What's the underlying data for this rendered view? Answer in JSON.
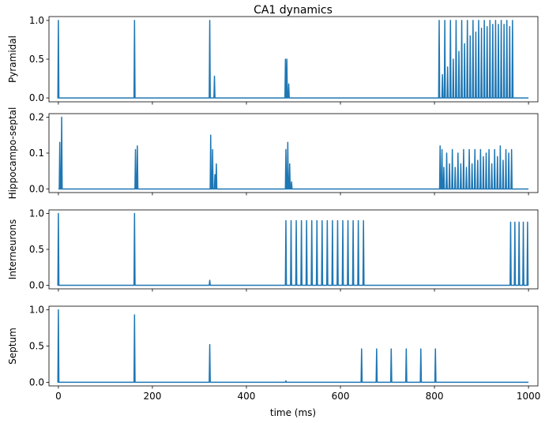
{
  "chart_data": {
    "type": "line",
    "title": "CA1 dynamics",
    "xlabel": "time (ms)",
    "xlim": [
      -20,
      1020
    ],
    "x_ticks": [
      0,
      200,
      400,
      600,
      800,
      1000
    ],
    "x_tick_labels": [
      "0",
      "200",
      "400",
      "600",
      "800",
      "1000"
    ],
    "line_color": "#1f77b4",
    "grid": false,
    "legend": "none",
    "panels": [
      {
        "ylabel": "Pyramidal",
        "ylim": [
          -0.05,
          1.05
        ],
        "y_ticks": [
          0,
          0.5,
          1
        ],
        "y_tick_labels": [
          "0.0",
          "0.5",
          "1.0"
        ],
        "peaks": [
          {
            "t": 0,
            "h": 1.0
          },
          {
            "t": 162,
            "h": 1.0
          },
          {
            "t": 322,
            "h": 1.0
          },
          {
            "t": 332,
            "h": 0.28
          },
          {
            "t": 483,
            "h": 0.5
          },
          {
            "t": 486,
            "h": 0.5
          },
          {
            "t": 490,
            "h": 0.18
          },
          {
            "t": 810,
            "h": 1.0
          },
          {
            "t": 817,
            "h": 0.3
          },
          {
            "t": 822,
            "h": 1.0
          },
          {
            "t": 828,
            "h": 0.4
          },
          {
            "t": 834,
            "h": 1.0
          },
          {
            "t": 840,
            "h": 0.5
          },
          {
            "t": 846,
            "h": 1.0
          },
          {
            "t": 852,
            "h": 0.6
          },
          {
            "t": 858,
            "h": 1.0
          },
          {
            "t": 864,
            "h": 0.7
          },
          {
            "t": 870,
            "h": 1.0
          },
          {
            "t": 876,
            "h": 0.8
          },
          {
            "t": 882,
            "h": 1.0
          },
          {
            "t": 888,
            "h": 0.85
          },
          {
            "t": 894,
            "h": 1.0
          },
          {
            "t": 900,
            "h": 0.9
          },
          {
            "t": 906,
            "h": 1.0
          },
          {
            "t": 912,
            "h": 0.92
          },
          {
            "t": 918,
            "h": 1.0
          },
          {
            "t": 924,
            "h": 0.95
          },
          {
            "t": 930,
            "h": 1.0
          },
          {
            "t": 936,
            "h": 0.95
          },
          {
            "t": 942,
            "h": 1.0
          },
          {
            "t": 948,
            "h": 0.95
          },
          {
            "t": 954,
            "h": 1.0
          },
          {
            "t": 960,
            "h": 0.92
          },
          {
            "t": 966,
            "h": 1.0
          }
        ]
      },
      {
        "ylabel": "Hippocampo-septal",
        "ylim": [
          -0.01,
          0.21
        ],
        "y_ticks": [
          0,
          0.1,
          0.2
        ],
        "y_tick_labels": [
          "0.0",
          "0.1",
          "0.2"
        ],
        "peaks": [
          {
            "t": 3,
            "h": 0.13
          },
          {
            "t": 7,
            "h": 0.2
          },
          {
            "t": 164,
            "h": 0.11
          },
          {
            "t": 168,
            "h": 0.12
          },
          {
            "t": 324,
            "h": 0.15
          },
          {
            "t": 328,
            "h": 0.11
          },
          {
            "t": 333,
            "h": 0.04
          },
          {
            "t": 336,
            "h": 0.07
          },
          {
            "t": 484,
            "h": 0.11
          },
          {
            "t": 488,
            "h": 0.13
          },
          {
            "t": 492,
            "h": 0.07
          },
          {
            "t": 496,
            "h": 0.02
          },
          {
            "t": 812,
            "h": 0.12
          },
          {
            "t": 816,
            "h": 0.11
          },
          {
            "t": 820,
            "h": 0.06
          },
          {
            "t": 826,
            "h": 0.1
          },
          {
            "t": 832,
            "h": 0.07
          },
          {
            "t": 838,
            "h": 0.11
          },
          {
            "t": 844,
            "h": 0.06
          },
          {
            "t": 850,
            "h": 0.1
          },
          {
            "t": 856,
            "h": 0.07
          },
          {
            "t": 862,
            "h": 0.11
          },
          {
            "t": 868,
            "h": 0.06
          },
          {
            "t": 874,
            "h": 0.11
          },
          {
            "t": 880,
            "h": 0.07
          },
          {
            "t": 886,
            "h": 0.11
          },
          {
            "t": 892,
            "h": 0.08
          },
          {
            "t": 898,
            "h": 0.11
          },
          {
            "t": 904,
            "h": 0.09
          },
          {
            "t": 910,
            "h": 0.1
          },
          {
            "t": 916,
            "h": 0.11
          },
          {
            "t": 922,
            "h": 0.07
          },
          {
            "t": 928,
            "h": 0.11
          },
          {
            "t": 934,
            "h": 0.09
          },
          {
            "t": 940,
            "h": 0.12
          },
          {
            "t": 946,
            "h": 0.08
          },
          {
            "t": 952,
            "h": 0.11
          },
          {
            "t": 958,
            "h": 0.1
          },
          {
            "t": 964,
            "h": 0.11
          }
        ]
      },
      {
        "ylabel": "Interneurons",
        "ylim": [
          -0.05,
          1.05
        ],
        "y_ticks": [
          0,
          0.5,
          1
        ],
        "y_tick_labels": [
          "0.0",
          "0.5",
          "1.0"
        ],
        "peaks": [
          {
            "t": 0,
            "h": 1.0
          },
          {
            "t": 162,
            "h": 1.0
          },
          {
            "t": 322,
            "h": 0.07
          },
          {
            "t": 484,
            "h": 0.9
          },
          {
            "t": 495,
            "h": 0.9
          },
          {
            "t": 506,
            "h": 0.9
          },
          {
            "t": 517,
            "h": 0.9
          },
          {
            "t": 528,
            "h": 0.9
          },
          {
            "t": 539,
            "h": 0.9
          },
          {
            "t": 550,
            "h": 0.9
          },
          {
            "t": 561,
            "h": 0.9
          },
          {
            "t": 572,
            "h": 0.9
          },
          {
            "t": 583,
            "h": 0.9
          },
          {
            "t": 594,
            "h": 0.9
          },
          {
            "t": 605,
            "h": 0.9
          },
          {
            "t": 616,
            "h": 0.9
          },
          {
            "t": 627,
            "h": 0.9
          },
          {
            "t": 638,
            "h": 0.9
          },
          {
            "t": 649,
            "h": 0.9
          },
          {
            "t": 962,
            "h": 0.88
          },
          {
            "t": 971,
            "h": 0.88
          },
          {
            "t": 980,
            "h": 0.88
          },
          {
            "t": 989,
            "h": 0.88
          },
          {
            "t": 998,
            "h": 0.88
          }
        ]
      },
      {
        "ylabel": "Septum",
        "ylim": [
          -0.05,
          1.05
        ],
        "y_ticks": [
          0,
          0.5,
          1
        ],
        "y_tick_labels": [
          "0.0",
          "0.5",
          "1.0"
        ],
        "peaks": [
          {
            "t": 0,
            "h": 1.0
          },
          {
            "t": 162,
            "h": 0.93
          },
          {
            "t": 322,
            "h": 0.52
          },
          {
            "t": 484,
            "h": 0.02
          },
          {
            "t": 645,
            "h": 0.46
          },
          {
            "t": 677,
            "h": 0.46
          },
          {
            "t": 708,
            "h": 0.46
          },
          {
            "t": 740,
            "h": 0.46
          },
          {
            "t": 771,
            "h": 0.46
          },
          {
            "t": 802,
            "h": 0.46
          }
        ]
      }
    ]
  }
}
